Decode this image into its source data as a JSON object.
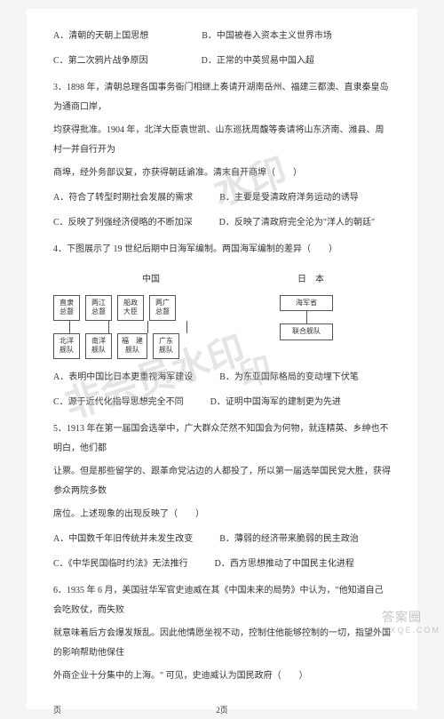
{
  "q2": {
    "optA": "A．清朝的天朝上国思想",
    "optB": "B．中国被卷入资本主义世界市场",
    "optC": "C．第二次鸦片战争原因",
    "optD": "D．正常的中英贸易中国入超"
  },
  "q3": {
    "line1": "3．1898 年，清朝总理各国事务衙门相继上奏请开湖南岳州、福建三都澳、直隶秦皇岛为通商口岸，",
    "line2": "均获得批准。1904 年，北洋大臣袁世凯、山东巡抚周馥等奏请将山东济南、潍县、周村一并自行开为",
    "line3": "商埠，经外务部议复，亦获得朝廷谕准。清末自开商埠（　　）",
    "optA": "A．符合了转型时期社会发展的需求",
    "optB": "B．主要是受清政府洋务运动的诱导",
    "optC": "C．反映了列强经济侵略的不断加深",
    "optD": "D．反映了清政府完全沦为\"洋人的朝廷\""
  },
  "q4": {
    "stem": "4．下图展示了 19 世纪后期中日海军编制。两国海军编制的差异（　　）",
    "labelCN": "中国",
    "labelJP": "日　本",
    "cn_top": [
      "直隶\n总督",
      "两江\n总督",
      "船政\n大臣",
      "两广\n总督"
    ],
    "cn_bot": [
      "北洋\n舰队",
      "南洋\n舰队",
      "福　建\n舰队",
      "广东\n舰队"
    ],
    "jp_top": "海军省",
    "jp_bot": "联合舰队",
    "optA": "A．表明中国比日本更重视海军建设",
    "optB": "B．为东亚国际格局的变动埋下伏笔",
    "optC": "C．源于近代化指导思想完全不同",
    "optD": "D．证明中国海军的建制更为先进"
  },
  "q5": {
    "line1": "5．1913 年在第一届国会选举中，广大群众茫然不知国会为何物，就连精英、乡绅也不明白，他们都",
    "line2": "让票。但是那些留学的、跟革命党沾边的人都投了，所以第一届选举国民党大胜，获得参众两院多数",
    "line3": "席位。上述现象的出现反映了（　　）",
    "optA": "A．中国数千年旧传统并未发生改变",
    "optB": "B．薄弱的经济带来脆弱的民主政治",
    "optC": "C．《中华民国临时约法》无法推行",
    "optD": "D．西方思想推动了中国民主化进程"
  },
  "q6": {
    "line1": "6．1935 年 6 月，美国驻华军官史迪威在其《中国未来的局势》中认为，\"他知道自己会吃败仗，而失败",
    "line2": "就意味着后方会爆发叛乱。因此他情愿坐视不动，控制住他能够控制的一切，指望外国的影响帮助他保住",
    "line3": "外商企业十分集中的上海。\" 可见，史迪威认为国民政府（　　）"
  },
  "footer": {
    "left": "页",
    "center": "2页"
  },
  "watermarks": {
    "w1": "水印",
    "w2": "非会员水印",
    "w3": "印"
  },
  "corner": {
    "brand": "答案圈",
    "site": "MXQE.COM"
  }
}
